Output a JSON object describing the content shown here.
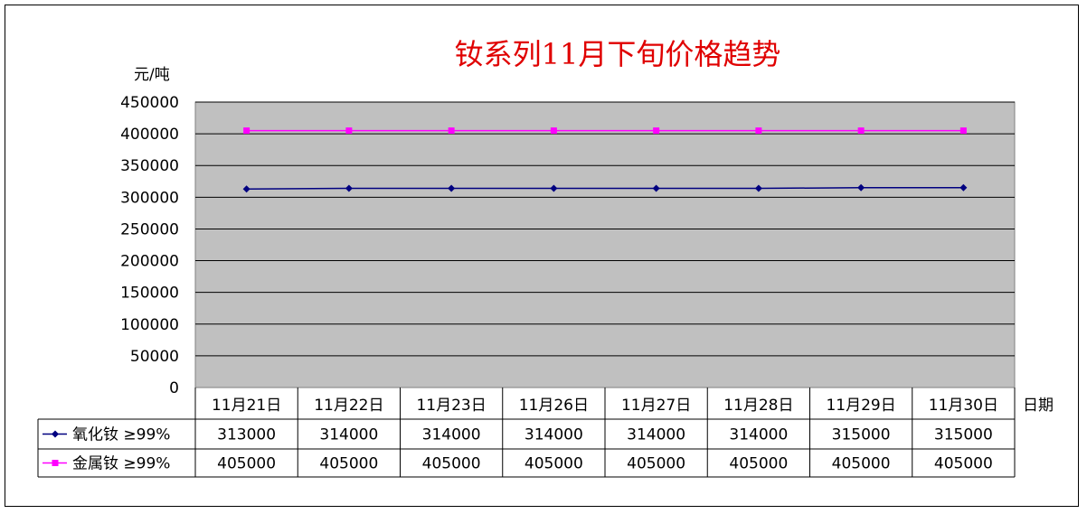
{
  "chart_data": {
    "type": "line",
    "title": "钕系列11月下旬价格趋势",
    "ylabel": "元/吨",
    "xlabel": "日期",
    "ylim": [
      0,
      450000
    ],
    "yticks": [
      "450000",
      "400000",
      "350000",
      "300000",
      "250000",
      "200000",
      "150000",
      "100000",
      "50000",
      "0"
    ],
    "categories": [
      "11月21日",
      "11月22日",
      "11月23日",
      "11月26日",
      "11月27日",
      "11月28日",
      "11月29日",
      "11月30日"
    ],
    "grid": true,
    "legend": "data-table",
    "series": [
      {
        "name": "氧化钕 ≥99%",
        "color": "#000080",
        "marker": "diamond",
        "values": [
          313000,
          314000,
          314000,
          314000,
          314000,
          314000,
          315000,
          315000
        ],
        "labels": [
          "313000",
          "314000",
          "314000",
          "314000",
          "314000",
          "314000",
          "315000",
          "315000"
        ]
      },
      {
        "name": "金属钕 ≥99%",
        "color": "#ff00ff",
        "marker": "square",
        "values": [
          405000,
          405000,
          405000,
          405000,
          405000,
          405000,
          405000,
          405000
        ],
        "labels": [
          "405000",
          "405000",
          "405000",
          "405000",
          "405000",
          "405000",
          "405000",
          "405000"
        ]
      }
    ],
    "colors": {
      "plot_background": "#c0c0c0",
      "title": "#e00000"
    }
  }
}
